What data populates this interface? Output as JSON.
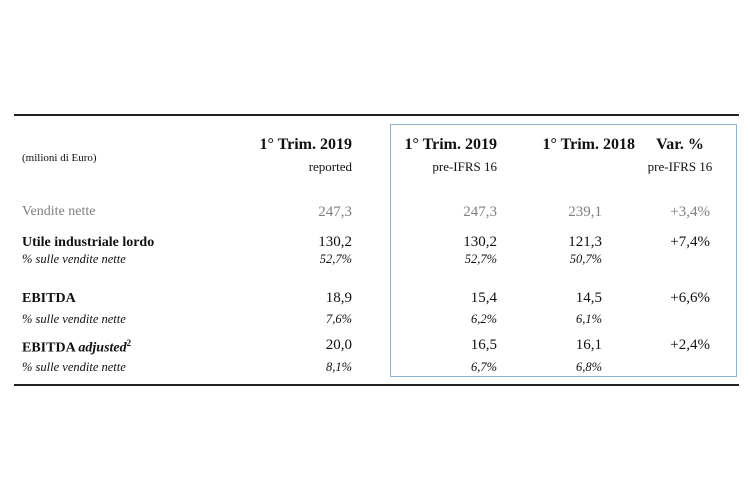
{
  "table": {
    "unit_label": "(milioni di Euro)",
    "columns": [
      {
        "title": "1° Trim. 2019",
        "subtitle": "reported"
      },
      {
        "title": "1° Trim. 2019",
        "subtitle": "pre-IFRS 16"
      },
      {
        "title": "1° Trim. 2018",
        "subtitle": ""
      },
      {
        "title": "Var. %",
        "subtitle": "pre-IFRS 16"
      }
    ],
    "rows": [
      {
        "label": "Vendite nette",
        "values": [
          "247,3",
          "247,3",
          "239,1",
          "+3,4%"
        ]
      },
      {
        "label": "Utile industriale lordo",
        "values": [
          "130,2",
          "130,2",
          "121,3",
          "+7,4%"
        ]
      },
      {
        "label": "% sulle vendite nette",
        "values": [
          "52,7%",
          "52,7%",
          "50,7%",
          ""
        ]
      },
      {
        "label": "EBITDA",
        "values": [
          "18,9",
          "15,4",
          "14,5",
          "+6,6%"
        ]
      },
      {
        "label": "% sulle vendite nette",
        "values": [
          "7,6%",
          "6,2%",
          "6,1%",
          ""
        ]
      },
      {
        "label": "EBITDA",
        "label_italic": "adjusted",
        "label_sup": "2",
        "values": [
          "20,0",
          "16,5",
          "16,1",
          "+2,4%"
        ]
      },
      {
        "label": "% sulle vendite nette",
        "values": [
          "8,1%",
          "6,7%",
          "6,8%",
          ""
        ]
      }
    ]
  },
  "colors": {
    "highlight_border": "#8fb3d6",
    "muted_text": "#808080"
  }
}
